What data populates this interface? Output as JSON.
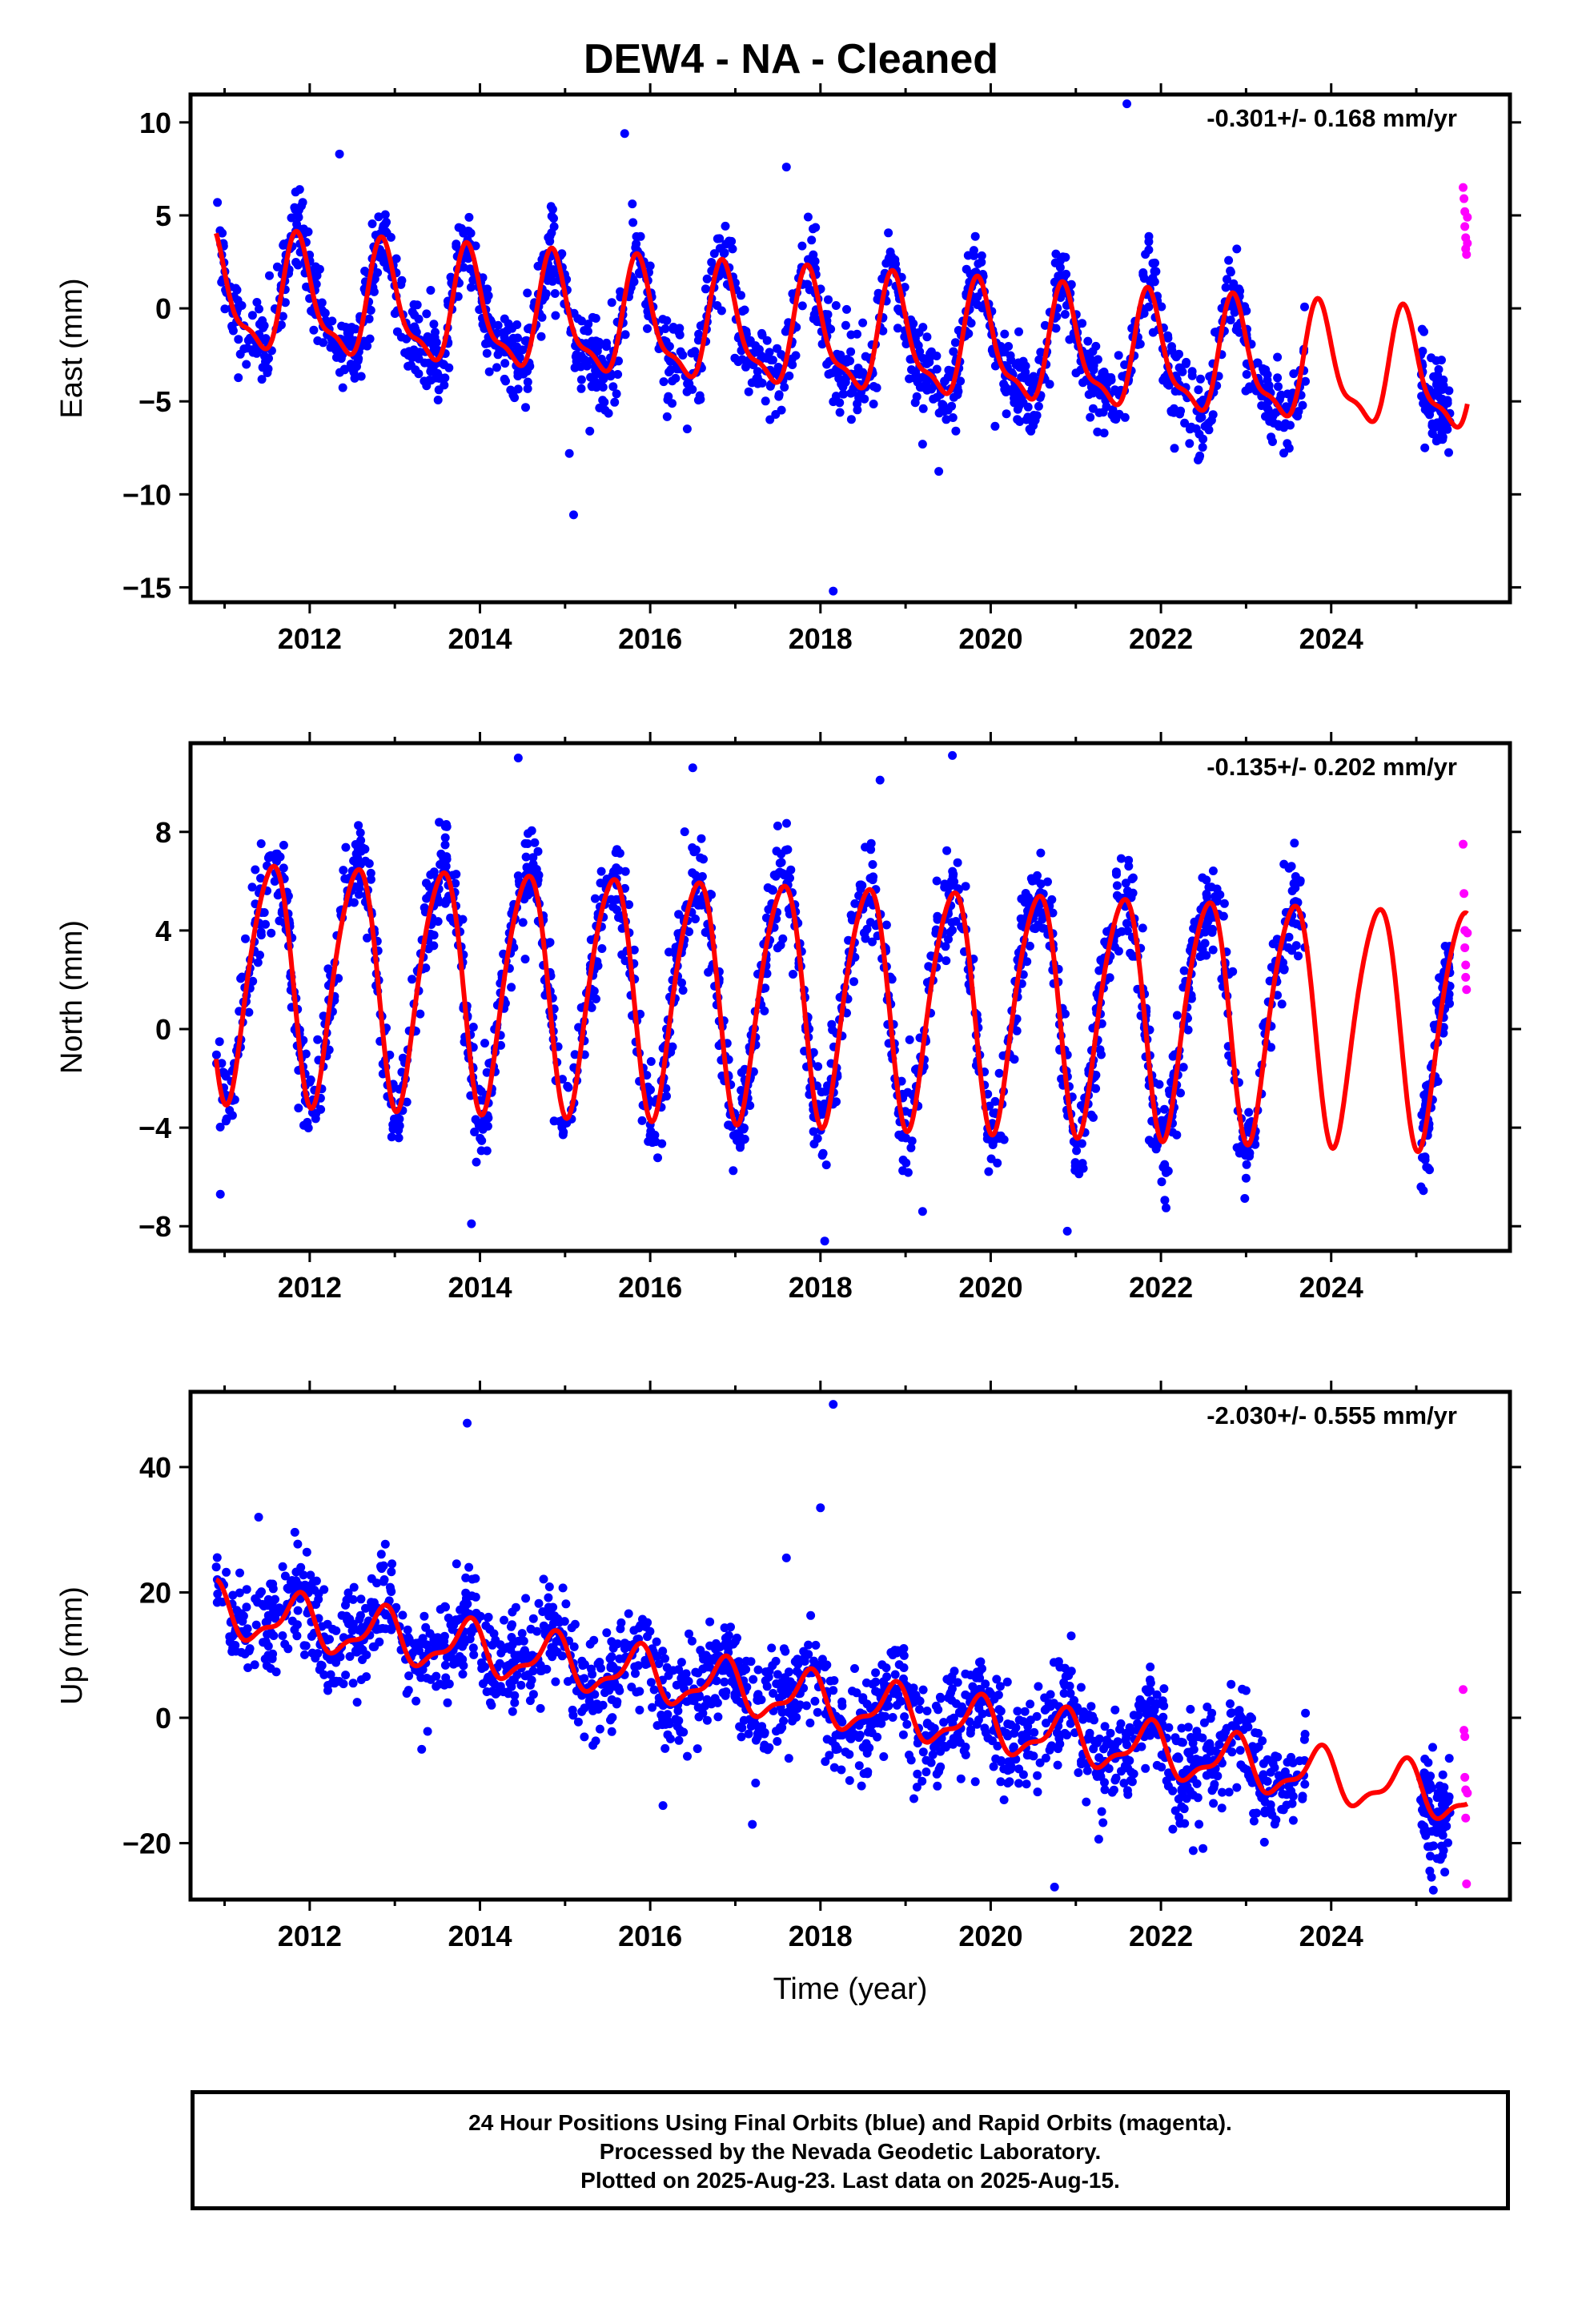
{
  "title": "DEW4  - NA - Cleaned",
  "footer": {
    "line1": "24 Hour Positions Using Final Orbits (blue) and Rapid Orbits (magenta).",
    "line2": "Processed by the Nevada Geodetic Laboratory.",
    "line3": "Plotted on 2025-Aug-23. Last data on 2025-Aug-15."
  },
  "colors": {
    "final_orbits": "#0000ff",
    "rapid_orbits": "#ff00ff",
    "model": "#ff0000",
    "axes": "#000000"
  },
  "chart_data": [
    {
      "type": "scatter",
      "title": "",
      "ylabel": "East (mm)",
      "xlabel": "",
      "rate": "-0.301+/- 0.168 mm/yr",
      "xlim": [
        2010.6,
        2026.1
      ],
      "ylim": [
        -15.8,
        11.5
      ],
      "xticks": [
        2012,
        2014,
        2016,
        2018,
        2020,
        2022,
        2024
      ],
      "yticks": [
        10,
        5,
        0,
        -5,
        -10,
        -15
      ],
      "ytick_labels": [
        "10",
        "5",
        "0",
        "−5",
        "−10",
        "−15"
      ],
      "model": {
        "offset": 0.6,
        "trend": -0.301,
        "annual_amp": 2.9,
        "annual_phase": 0.62,
        "semi_amp": 1.0,
        "semi_phase": 0.2,
        "t0": 2010.9,
        "t1": 2025.6
      },
      "final_orbits": {
        "t_start": 2010.9,
        "t_end": 2023.7,
        "t2_start": 2025.05,
        "t2_end": 2025.4,
        "scatter": 1.1,
        "outliers": [
          [
            2015.1,
            -11.1
          ],
          [
            2018.15,
            -15.2
          ],
          [
            2021.6,
            11.0
          ],
          [
            2015.05,
            -7.8
          ],
          [
            2012.35,
            8.3
          ],
          [
            2015.7,
            9.4
          ],
          [
            2017.6,
            7.6
          ],
          [
            2019.2,
            -7.3
          ],
          [
            2025.1,
            -7.5
          ]
        ]
      },
      "rapid_orbits": [
        [
          2025.55,
          6.5
        ],
        [
          2025.56,
          5.9
        ],
        [
          2025.57,
          5.2
        ],
        [
          2025.57,
          4.4
        ],
        [
          2025.58,
          3.8
        ],
        [
          2025.58,
          3.2
        ],
        [
          2025.59,
          2.9
        ],
        [
          2025.6,
          4.9
        ],
        [
          2025.6,
          3.5
        ]
      ]
    },
    {
      "type": "scatter",
      "title": "",
      "ylabel": "North (mm)",
      "xlabel": "",
      "rate": "-0.135+/- 0.202 mm/yr",
      "xlim": [
        2010.6,
        2026.1
      ],
      "ylim": [
        -9.0,
        11.6
      ],
      "xticks": [
        2012,
        2014,
        2016,
        2018,
        2020,
        2022,
        2024
      ],
      "yticks": [
        8,
        4,
        0,
        -4,
        -8
      ],
      "ytick_labels": [
        "8",
        "4",
        "0",
        "−4",
        "−8"
      ],
      "model": {
        "offset": 2.2,
        "trend": -0.135,
        "annual_amp": 4.8,
        "annual_phase": 0.29,
        "semi_amp": 0.6,
        "semi_phase": 0.1,
        "t0": 2010.9,
        "t1": 2025.6
      },
      "final_orbits": {
        "t_start": 2010.9,
        "t_end": 2023.7,
        "t2_start": 2025.05,
        "t2_end": 2025.4,
        "scatter": 1.0,
        "outliers": [
          [
            2010.95,
            -6.7
          ],
          [
            2013.9,
            -7.9
          ],
          [
            2018.05,
            -8.6
          ],
          [
            2019.55,
            11.1
          ],
          [
            2014.45,
            11.0
          ],
          [
            2016.5,
            10.6
          ],
          [
            2020.9,
            -8.2
          ],
          [
            2019.2,
            -7.4
          ],
          [
            2018.7,
            10.1
          ]
        ]
      },
      "rapid_orbits": [
        [
          2025.55,
          7.5
        ],
        [
          2025.56,
          5.5
        ],
        [
          2025.57,
          4.0
        ],
        [
          2025.57,
          3.3
        ],
        [
          2025.58,
          2.6
        ],
        [
          2025.58,
          2.1
        ],
        [
          2025.59,
          1.6
        ],
        [
          2025.6,
          3.9
        ]
      ]
    },
    {
      "type": "scatter",
      "title": "",
      "ylabel": "Up (mm)",
      "xlabel": "Time (year)",
      "rate": "-2.030+/- 0.555 mm/yr",
      "xlim": [
        2010.6,
        2026.1
      ],
      "ylim": [
        -29.0,
        52.0
      ],
      "xticks": [
        2012,
        2014,
        2016,
        2018,
        2020,
        2022,
        2024
      ],
      "yticks": [
        40,
        20,
        0,
        -20
      ],
      "ytick_labels": [
        "40",
        "20",
        "0",
        "−20"
      ],
      "model": {
        "offset": 17.0,
        "trend": -2.03,
        "annual_amp": 3.8,
        "annual_phase": 0.6,
        "semi_amp": 1.5,
        "semi_phase": 0.3,
        "t0": 2010.9,
        "t1": 2025.6
      },
      "final_orbits": {
        "t_start": 2010.9,
        "t_end": 2023.7,
        "t2_start": 2025.05,
        "t2_end": 2025.4,
        "scatter": 4.0,
        "outliers": [
          [
            2013.85,
            47.0
          ],
          [
            2018.15,
            50.0
          ],
          [
            2018.0,
            33.5
          ],
          [
            2017.6,
            25.5
          ],
          [
            2011.4,
            32.0
          ],
          [
            2020.75,
            -27.0
          ],
          [
            2017.2,
            -17.0
          ],
          [
            2016.15,
            -14.0
          ],
          [
            2025.2,
            -27.5
          ]
        ]
      },
      "rapid_orbits": [
        [
          2025.55,
          4.5
        ],
        [
          2025.56,
          -2.0
        ],
        [
          2025.57,
          -3.0
        ],
        [
          2025.57,
          -9.5
        ],
        [
          2025.58,
          -11.5
        ],
        [
          2025.58,
          -16.0
        ],
        [
          2025.59,
          -26.5
        ],
        [
          2025.6,
          -12.0
        ]
      ]
    }
  ]
}
